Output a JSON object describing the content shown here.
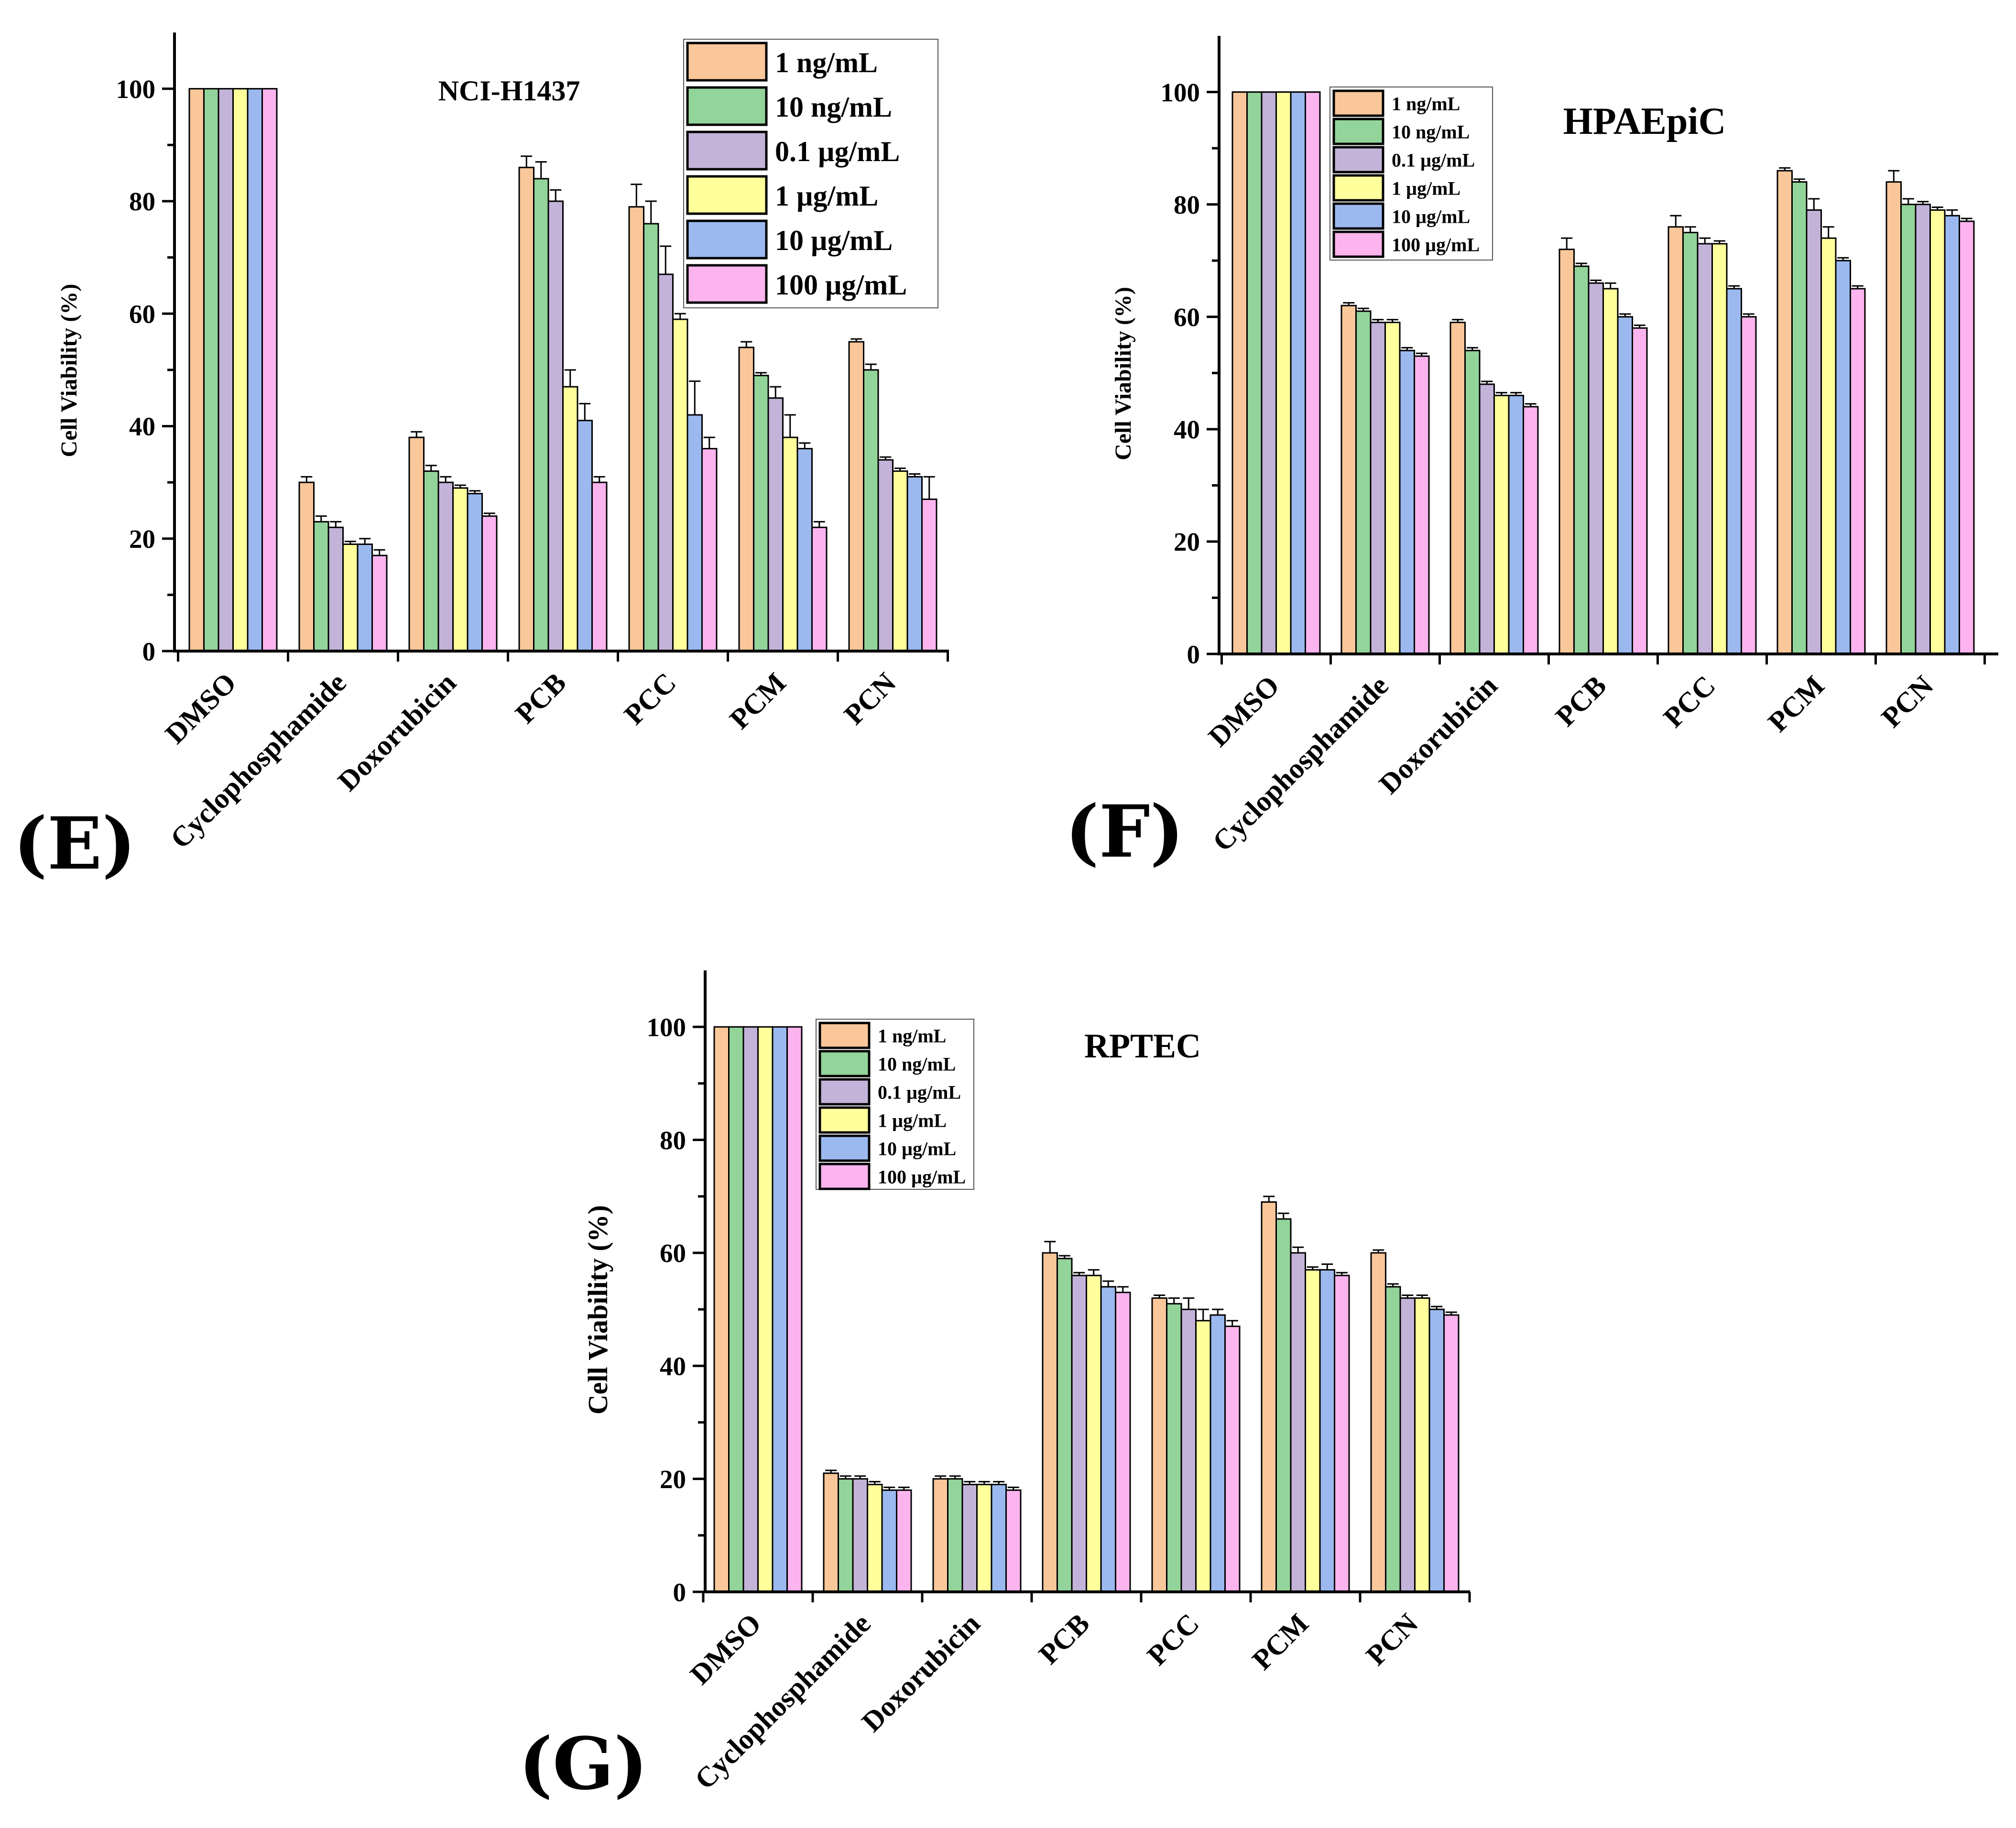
{
  "panels": {
    "e": {
      "letter": "(E)"
    },
    "f": {
      "letter": "(F)"
    },
    "g": {
      "letter": "(G)"
    }
  },
  "colors": [
    "#f9c79a",
    "#93d49a",
    "#c3b3d9",
    "#ffff9c",
    "#9bb9ef",
    "#fbb4ee"
  ],
  "chart_data": [
    {
      "type": "bar",
      "id": "E",
      "title": "NCI-H1437",
      "ylabel": "Cell Viability (%)",
      "xlabel": "",
      "ylim": [
        0,
        110
      ],
      "yticks": [
        "0",
        "20",
        "40",
        "60",
        "80",
        "100"
      ],
      "categories": [
        "DMSO",
        "Cyclophosphamide",
        "Doxorubicin",
        "PCB",
        "PCC",
        "PCM",
        "PCN"
      ],
      "legend_position": "top-right",
      "series": [
        {
          "name": "1 ng/mL",
          "values": [
            100,
            30,
            38,
            86,
            79,
            54,
            55
          ],
          "errors": [
            0,
            1,
            1,
            2,
            4,
            1,
            0.5
          ]
        },
        {
          "name": "10 ng/mL",
          "values": [
            100,
            23,
            32,
            84,
            76,
            49,
            50
          ],
          "errors": [
            0,
            1,
            1,
            3,
            4,
            0.5,
            1
          ]
        },
        {
          "name": "0.1 µg/mL",
          "values": [
            100,
            22,
            30,
            80,
            67,
            45,
            34
          ],
          "errors": [
            0,
            1,
            1,
            2,
            5,
            2,
            0.5
          ]
        },
        {
          "name": "1 µg/mL",
          "values": [
            100,
            19,
            29,
            47,
            59,
            38,
            32
          ],
          "errors": [
            0,
            0.5,
            0.5,
            3,
            1,
            4,
            0.5
          ]
        },
        {
          "name": "10 µg/mL",
          "values": [
            100,
            19,
            28,
            41,
            42,
            36,
            31
          ],
          "errors": [
            0,
            1,
            0.5,
            3,
            6,
            1,
            0.5
          ]
        },
        {
          "name": "100 µg/mL",
          "values": [
            100,
            17,
            24,
            30,
            36,
            22,
            27
          ],
          "errors": [
            0,
            1,
            0.5,
            1,
            2,
            1,
            4
          ]
        }
      ]
    },
    {
      "type": "bar",
      "id": "F",
      "title": "HPAEpiC",
      "ylabel": "Cell Viability (%)",
      "xlabel": "",
      "ylim": [
        0,
        110
      ],
      "yticks": [
        "0",
        "20",
        "40",
        "60",
        "80",
        "100"
      ],
      "categories": [
        "DMSO",
        "Cyclophosphamide",
        "Doxorubicin",
        "PCB",
        "PCC",
        "PCM",
        "PCN"
      ],
      "legend_position": "top-left",
      "series": [
        {
          "name": "1 ng/mL",
          "values": [
            100,
            62,
            59,
            72,
            76,
            86,
            84
          ],
          "errors": [
            0,
            0.5,
            0.5,
            2,
            2,
            0.5,
            2
          ]
        },
        {
          "name": "10 ng/mL",
          "values": [
            100,
            61,
            54,
            69,
            75,
            84,
            80
          ],
          "errors": [
            0,
            0.5,
            0.5,
            0.5,
            1,
            0.5,
            1
          ]
        },
        {
          "name": "0.1 µg/mL",
          "values": [
            100,
            59,
            48,
            66,
            73,
            79,
            80
          ],
          "errors": [
            0,
            0.5,
            0.5,
            0.5,
            1,
            2,
            0.5
          ]
        },
        {
          "name": "1 µg/mL",
          "values": [
            100,
            59,
            46,
            65,
            73,
            74,
            79
          ],
          "errors": [
            0,
            0.5,
            0.5,
            1,
            0.5,
            2,
            0.5
          ]
        },
        {
          "name": "10 µg/mL",
          "values": [
            100,
            54,
            46,
            60,
            65,
            70,
            78
          ],
          "errors": [
            0,
            0.5,
            0.5,
            0.5,
            0.5,
            0.5,
            1
          ]
        },
        {
          "name": "100 µg/mL",
          "values": [
            100,
            53,
            44,
            58,
            60,
            65,
            77
          ],
          "errors": [
            0,
            0.5,
            0.5,
            0.5,
            0.5,
            0.5,
            0.5
          ]
        }
      ]
    },
    {
      "type": "bar",
      "id": "G",
      "title": "RPTEC",
      "ylabel": "Cell Viability (%)",
      "xlabel": "",
      "ylim": [
        0,
        110
      ],
      "yticks": [
        "0",
        "20",
        "40",
        "60",
        "80",
        "100"
      ],
      "categories": [
        "DMSO",
        "Cyclophosphamide",
        "Doxorubicin",
        "PCB",
        "PCC",
        "PCM",
        "PCN"
      ],
      "legend_position": "top-left",
      "series": [
        {
          "name": "1 ng/mL",
          "values": [
            100,
            21,
            20,
            60,
            52,
            69,
            60
          ],
          "errors": [
            0,
            0.5,
            0.5,
            2,
            0.5,
            1,
            0.5
          ]
        },
        {
          "name": "10 ng/mL",
          "values": [
            100,
            20,
            20,
            59,
            51,
            66,
            54
          ],
          "errors": [
            0,
            0.5,
            0.5,
            0.5,
            1,
            1,
            0.5
          ]
        },
        {
          "name": "0.1 µg/mL",
          "values": [
            100,
            20,
            19,
            56,
            50,
            60,
            52
          ],
          "errors": [
            0,
            0.5,
            0.5,
            0.5,
            2,
            1,
            0.5
          ]
        },
        {
          "name": "1 µg/mL",
          "values": [
            100,
            19,
            19,
            56,
            48,
            57,
            52
          ],
          "errors": [
            0,
            0.5,
            0.5,
            1,
            2,
            0.5,
            0.5
          ]
        },
        {
          "name": "10 µg/mL",
          "values": [
            100,
            18,
            19,
            54,
            49,
            57,
            50
          ],
          "errors": [
            0,
            0.5,
            0.5,
            1,
            1,
            1,
            0.5
          ]
        },
        {
          "name": "100 µg/mL",
          "values": [
            100,
            18,
            18,
            53,
            47,
            56,
            49
          ],
          "errors": [
            0,
            0.5,
            0.5,
            1,
            1,
            0.5,
            0.5
          ]
        }
      ]
    }
  ]
}
